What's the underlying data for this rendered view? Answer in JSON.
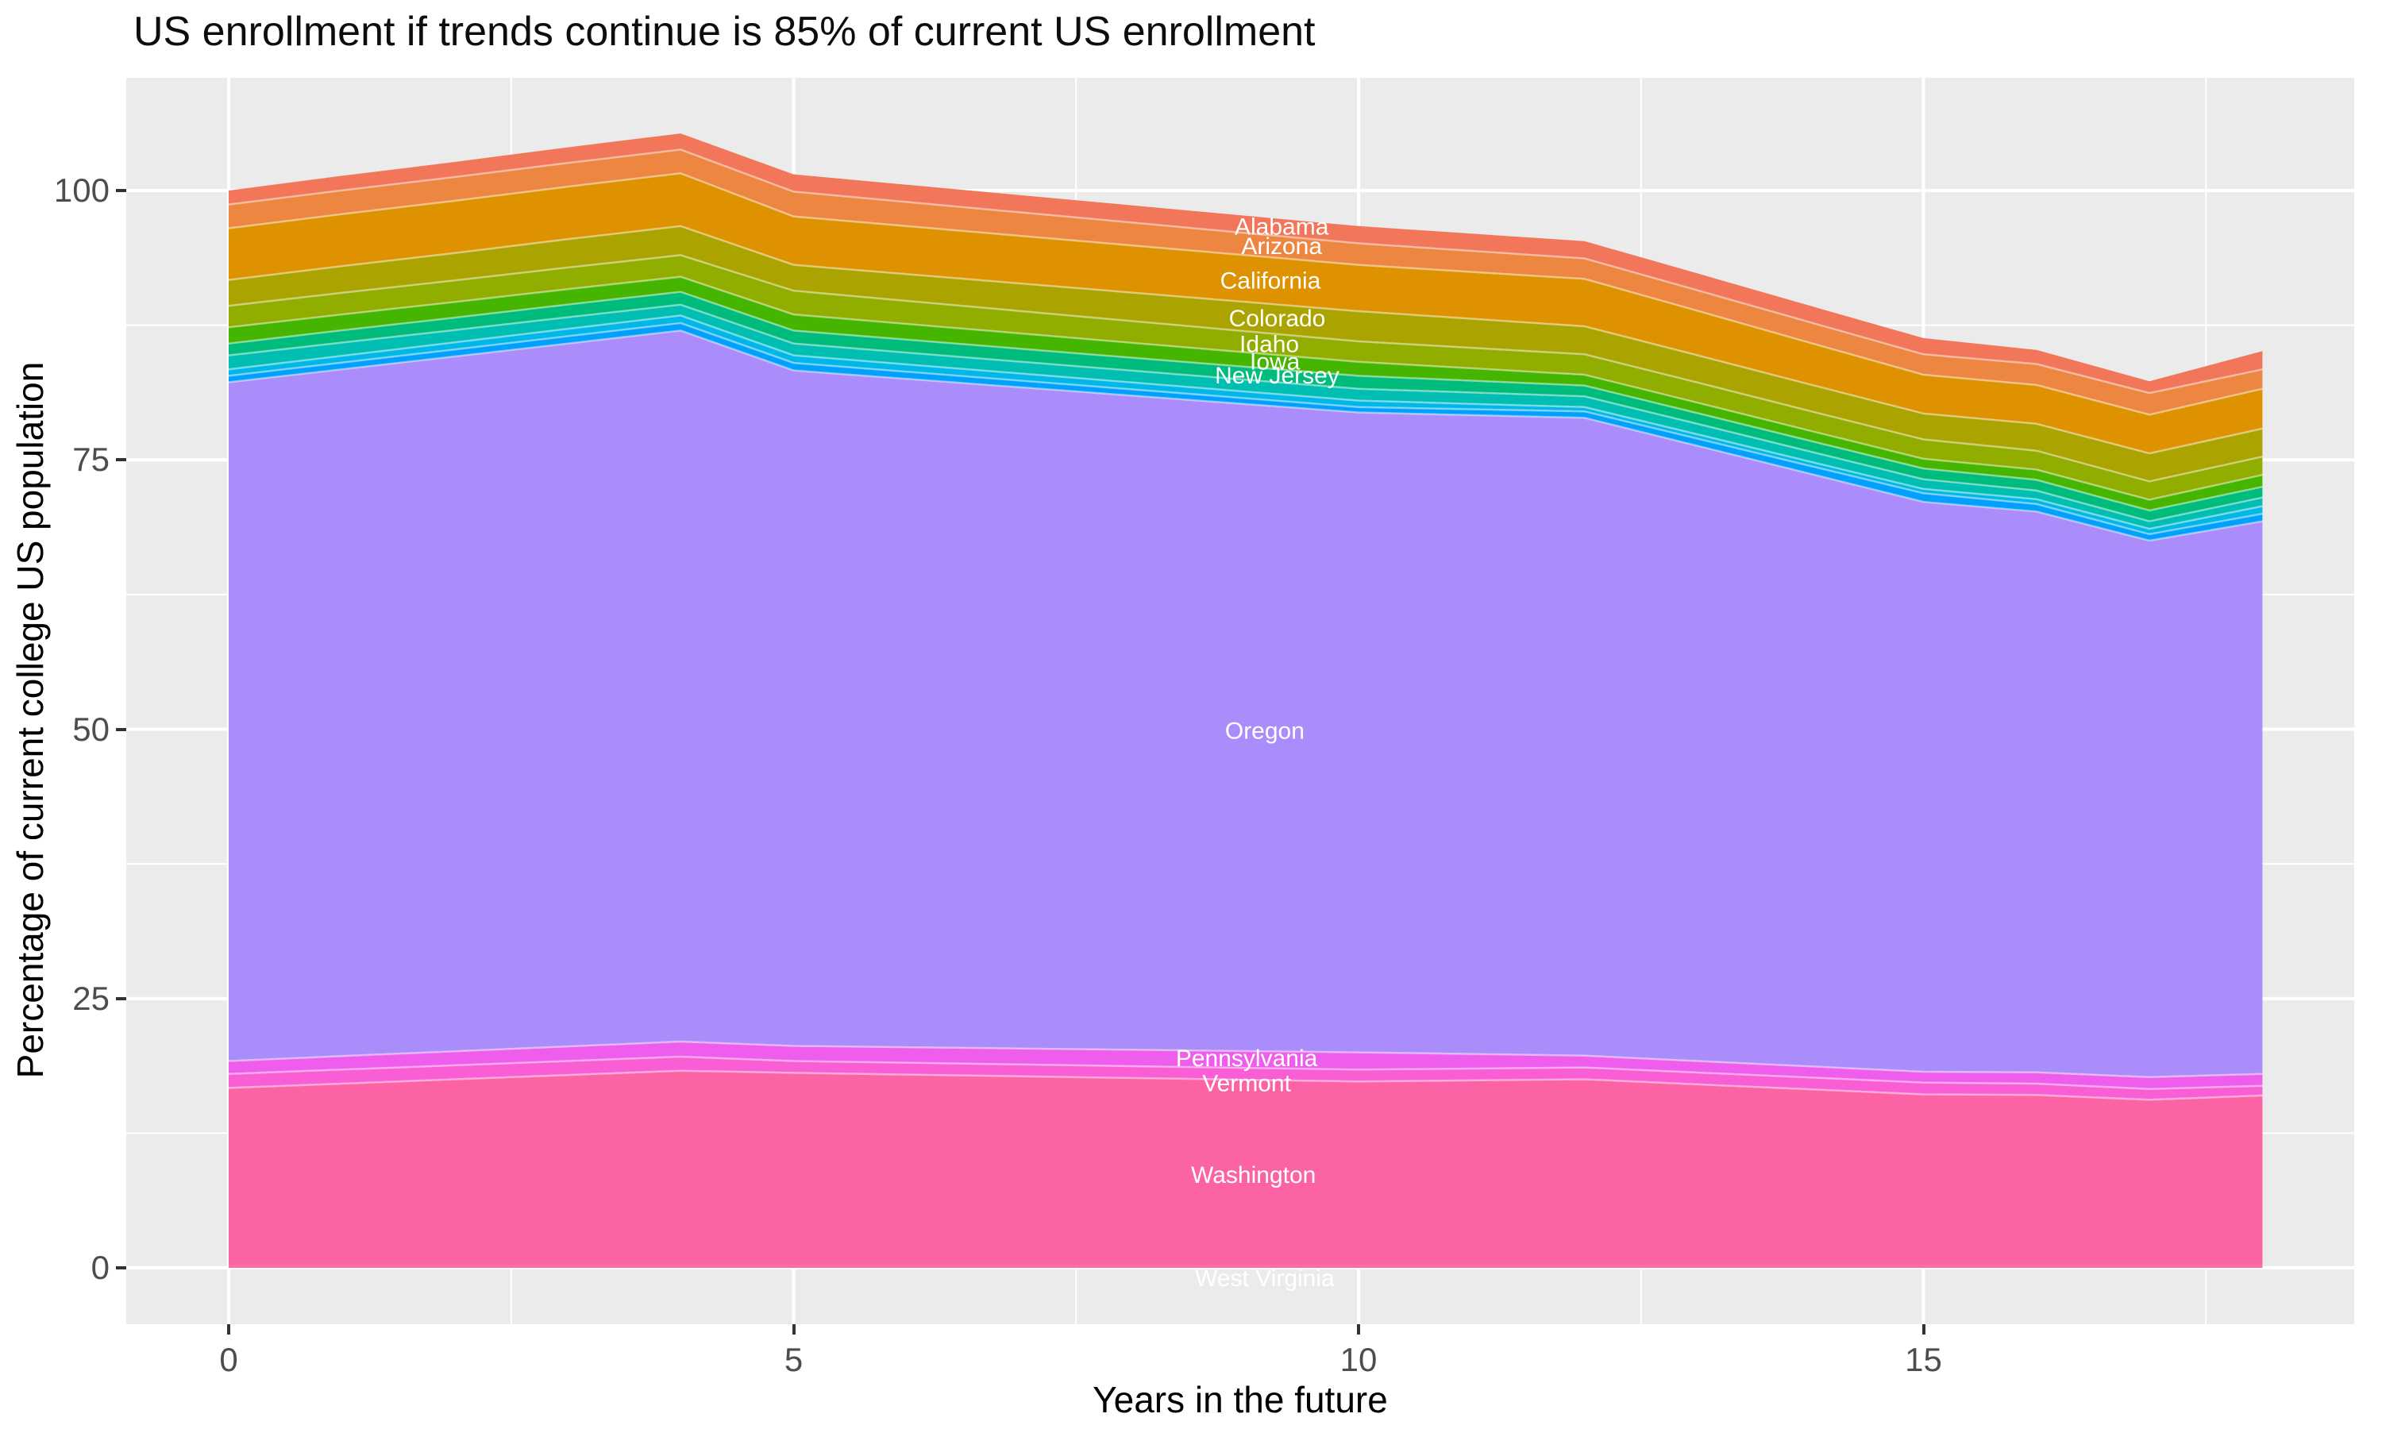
{
  "title": "US enrollment if trends continue is 85% of current US enrollment",
  "x_axis": {
    "title": "Years in the future",
    "ticks": [
      0,
      5,
      10,
      15
    ],
    "minor_ticks": [
      2.5,
      7.5,
      12.5,
      17.5
    ],
    "range": [
      -0.9,
      18.9
    ]
  },
  "y_axis": {
    "title": "Percentage of current college US population",
    "ticks": [
      0,
      25,
      50,
      75,
      100
    ],
    "minor_ticks": [
      12.5,
      37.5,
      62.5,
      87.5
    ],
    "range": [
      -5.2,
      110.5
    ]
  },
  "colors": {
    "panel_background": "#EBEBEB",
    "grid": "#FFFFFF",
    "axis_text": "#4D4D4D",
    "tick_mark": "#333333",
    "band_edge": "rgba(255,255,255,0.45)",
    "state_label_text": "#FFFFFF"
  },
  "chart_data": {
    "type": "area",
    "stacked": true,
    "x": [
      0,
      1,
      2,
      3,
      4,
      5,
      6,
      7,
      8,
      9,
      10,
      11,
      12,
      13,
      14,
      15,
      16,
      17,
      18
    ],
    "xlabel": "Years in the future",
    "ylabel": "Percentage of current college US population",
    "xlim": [
      -0.9,
      18.9
    ],
    "ylim": [
      -5.2,
      110.5
    ],
    "grid": "on",
    "legend": "none",
    "series": [
      {
        "name": "West Virginia",
        "color": "#FF6B9A",
        "labeled": true,
        "label_x": 9.17,
        "label_y": -1.0,
        "values": [
          0.25,
          0.25,
          0.25,
          0.25,
          0.25,
          0.25,
          0.25,
          0.25,
          0.25,
          0.25,
          0.25,
          0.25,
          0.25,
          0.25,
          0.25,
          0.25,
          0.25,
          0.25,
          0.25
        ]
      },
      {
        "name": "Washington",
        "color": "#FB63A5",
        "labeled": true,
        "label_x": 9.07,
        "label_y": 8.6,
        "values": [
          16.45,
          16.85,
          17.25,
          17.65,
          18.05,
          17.85,
          17.69,
          17.53,
          17.37,
          17.21,
          17.05,
          17.15,
          17.25,
          16.78,
          16.32,
          15.85,
          15.8,
          15.35,
          15.75
        ]
      },
      {
        "name": "Vermont",
        "color": "#FA5ED5",
        "labeled": true,
        "label_x": 9.01,
        "label_y": 17.1,
        "values": [
          1.3,
          1.3,
          1.3,
          1.3,
          1.3,
          1.1,
          1.1,
          1.1,
          1.1,
          1.1,
          1.1,
          1.1,
          1.1,
          1.1,
          1.1,
          1.1,
          1.05,
          1.0,
          0.9
        ]
      },
      {
        "name": "Pennsylvania",
        "color": "#EE5DEB",
        "labeled": true,
        "label_x": 9.01,
        "label_y": 19.4,
        "values": [
          1.2,
          1.25,
          1.3,
          1.35,
          1.4,
          1.4,
          1.44,
          1.48,
          1.52,
          1.56,
          1.6,
          1.35,
          1.1,
          1.07,
          1.03,
          1.0,
          1.05,
          1.1,
          1.1
        ]
      },
      {
        "name": "Oregon",
        "color": "#AA8CFA",
        "labeled": true,
        "label_x": 9.17,
        "label_y": 49.8,
        "values": [
          63.0,
          63.75,
          64.5,
          65.25,
          66.0,
          62.7,
          62.04,
          61.38,
          60.72,
          60.06,
          59.4,
          59.3,
          59.2,
          57.1,
          55.0,
          52.9,
          52.05,
          49.8,
          51.3
        ]
      },
      {
        "name": "",
        "color": "#00A0FC",
        "labeled": false,
        "values": [
          0.6,
          0.63,
          0.65,
          0.68,
          0.7,
          0.7,
          0.66,
          0.62,
          0.58,
          0.54,
          0.5,
          0.55,
          0.6,
          0.67,
          0.73,
          0.8,
          0.7,
          0.6,
          0.7
        ]
      },
      {
        "name": "",
        "color": "#00B7E8",
        "labeled": false,
        "values": [
          0.6,
          0.63,
          0.65,
          0.68,
          0.7,
          0.7,
          0.68,
          0.66,
          0.64,
          0.62,
          0.6,
          0.5,
          0.4,
          0.4,
          0.4,
          0.4,
          0.45,
          0.5,
          0.7
        ]
      },
      {
        "name": "New Jersey",
        "color": "#00BFB2",
        "labeled": true,
        "label_x": 9.28,
        "label_y": 82.8,
        "values": [
          1.3,
          1.23,
          1.15,
          1.08,
          1.0,
          1.1,
          1.1,
          1.1,
          1.1,
          1.1,
          1.1,
          1.05,
          1.0,
          0.97,
          0.93,
          0.9,
          0.8,
          0.7,
          0.8
        ]
      },
      {
        "name": "",
        "color": "#00BC7C",
        "labeled": false,
        "values": [
          1.1,
          1.13,
          1.15,
          1.18,
          1.2,
          1.2,
          1.2,
          1.2,
          1.2,
          1.2,
          1.2,
          1.1,
          1.0,
          1.0,
          1.0,
          1.0,
          1.0,
          1.0,
          1.0
        ]
      },
      {
        "name": "Iowa",
        "color": "#45B500",
        "labeled": true,
        "label_x": 9.26,
        "label_y": 84.1,
        "values": [
          1.5,
          1.48,
          1.45,
          1.43,
          1.4,
          1.5,
          1.46,
          1.42,
          1.38,
          1.34,
          1.3,
          1.15,
          1.0,
          0.97,
          0.93,
          0.9,
          0.95,
          1.0,
          1.1
        ]
      },
      {
        "name": "Idaho",
        "color": "#90AD00",
        "labeled": true,
        "label_x": 9.21,
        "label_y": 85.7,
        "values": [
          2.0,
          2.0,
          2.0,
          2.0,
          2.0,
          2.2,
          2.14,
          2.08,
          2.02,
          1.96,
          1.9,
          1.9,
          1.9,
          1.87,
          1.83,
          1.8,
          1.75,
          1.7,
          1.7
        ]
      },
      {
        "name": "Colorado",
        "color": "#ABA400",
        "labeled": true,
        "label_x": 9.28,
        "label_y": 88.1,
        "values": [
          2.4,
          2.48,
          2.55,
          2.63,
          2.7,
          2.4,
          2.48,
          2.56,
          2.64,
          2.72,
          2.8,
          2.7,
          2.6,
          2.53,
          2.47,
          2.4,
          2.5,
          2.6,
          2.6
        ]
      },
      {
        "name": "California",
        "color": "#DE9200",
        "labeled": true,
        "label_x": 9.22,
        "label_y": 91.6,
        "values": [
          4.8,
          4.83,
          4.85,
          4.88,
          4.9,
          4.5,
          4.46,
          4.42,
          4.38,
          4.34,
          4.3,
          4.35,
          4.4,
          4.13,
          3.87,
          3.6,
          3.6,
          3.6,
          3.7
        ]
      },
      {
        "name": "Arizona",
        "color": "#EC8640",
        "labeled": true,
        "label_x": 9.32,
        "label_y": 94.8,
        "values": [
          2.2,
          2.2,
          2.2,
          2.2,
          2.2,
          2.3,
          2.24,
          2.18,
          2.12,
          2.06,
          2.0,
          1.95,
          1.9,
          1.9,
          1.9,
          1.9,
          1.95,
          2.0,
          1.8
        ]
      },
      {
        "name": "Alabama",
        "color": "#F2775A",
        "labeled": true,
        "label_x": 9.32,
        "label_y": 96.6,
        "values": [
          1.3,
          1.35,
          1.4,
          1.45,
          1.5,
          1.6,
          1.6,
          1.6,
          1.6,
          1.6,
          1.6,
          1.6,
          1.6,
          1.57,
          1.53,
          1.5,
          1.3,
          1.1,
          1.7
        ]
      }
    ]
  }
}
